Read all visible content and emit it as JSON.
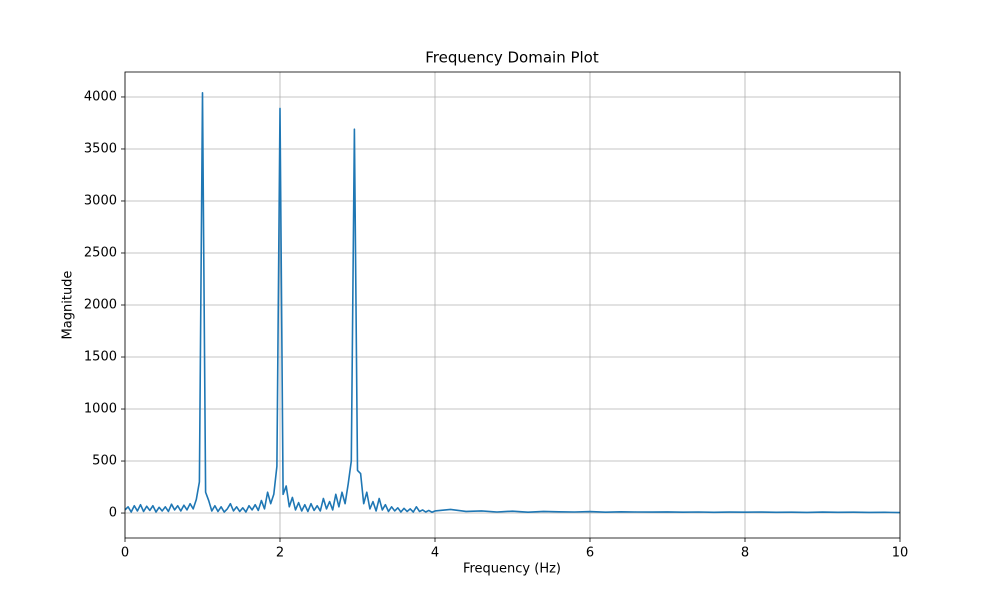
{
  "chart_data": {
    "type": "line",
    "title": "Frequency Domain Plot",
    "x_label": "Frequency (Hz)",
    "y_label": "Magnitude",
    "x": [
      0,
      0.04,
      0.08,
      0.12,
      0.16,
      0.2,
      0.24,
      0.28,
      0.32,
      0.36,
      0.4,
      0.44,
      0.48,
      0.52,
      0.56,
      0.6,
      0.64,
      0.68,
      0.72,
      0.76,
      0.8,
      0.84,
      0.88,
      0.92,
      0.96,
      1.0,
      1.04,
      1.08,
      1.12,
      1.16,
      1.2,
      1.24,
      1.28,
      1.32,
      1.36,
      1.4,
      1.44,
      1.48,
      1.52,
      1.56,
      1.6,
      1.64,
      1.68,
      1.72,
      1.76,
      1.8,
      1.84,
      1.88,
      1.92,
      1.96,
      2.0,
      2.04,
      2.08,
      2.12,
      2.16,
      2.2,
      2.24,
      2.28,
      2.32,
      2.36,
      2.4,
      2.44,
      2.48,
      2.52,
      2.56,
      2.6,
      2.64,
      2.68,
      2.72,
      2.76,
      2.8,
      2.84,
      2.88,
      2.92,
      2.96,
      3.0,
      3.04,
      3.08,
      3.12,
      3.16,
      3.2,
      3.24,
      3.28,
      3.32,
      3.36,
      3.4,
      3.44,
      3.48,
      3.52,
      3.56,
      3.6,
      3.64,
      3.68,
      3.72,
      3.76,
      3.8,
      3.84,
      3.88,
      3.92,
      3.96,
      4.0,
      4.2,
      4.4,
      4.6,
      4.8,
      5.0,
      5.2,
      5.4,
      5.6,
      5.8,
      6.0,
      6.2,
      6.4,
      6.6,
      6.8,
      7.0,
      7.2,
      7.4,
      7.6,
      7.8,
      8.0,
      8.2,
      8.4,
      8.6,
      8.8,
      9.0,
      9.2,
      9.4,
      9.6,
      9.8,
      10.0
    ],
    "values": [
      30,
      60,
      10,
      70,
      20,
      80,
      15,
      65,
      25,
      70,
      10,
      55,
      20,
      60,
      15,
      85,
      30,
      70,
      20,
      75,
      30,
      90,
      40,
      130,
      300,
      4040,
      200,
      120,
      20,
      70,
      15,
      60,
      10,
      40,
      90,
      20,
      60,
      15,
      50,
      10,
      70,
      30,
      80,
      25,
      120,
      40,
      200,
      90,
      180,
      450,
      3890,
      180,
      260,
      60,
      150,
      30,
      100,
      20,
      80,
      15,
      90,
      25,
      70,
      20,
      140,
      40,
      110,
      30,
      180,
      60,
      200,
      90,
      280,
      500,
      3690,
      410,
      380,
      90,
      200,
      40,
      110,
      20,
      140,
      30,
      80,
      15,
      60,
      20,
      50,
      10,
      45,
      15,
      40,
      10,
      60,
      15,
      30,
      10,
      25,
      8,
      20,
      35,
      15,
      20,
      10,
      18,
      8,
      15,
      12,
      10,
      14,
      8,
      12,
      10,
      9,
      11,
      8,
      10,
      7,
      9,
      8,
      10,
      7,
      8,
      6,
      9,
      7,
      8,
      6,
      7,
      5
    ],
    "color": "#1f77b4",
    "xlim": [
      0,
      10
    ],
    "xticks": [
      0,
      2,
      4,
      6,
      8,
      10
    ],
    "ylim": [
      -240,
      4240
    ],
    "yticks": [
      0,
      500,
      1000,
      1500,
      2000,
      2500,
      3000,
      3500,
      4000
    ],
    "grid": true
  }
}
